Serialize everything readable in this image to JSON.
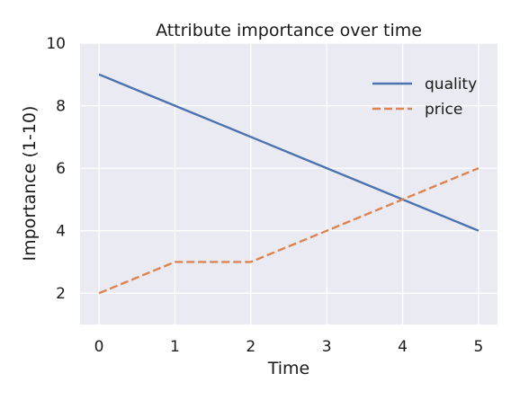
{
  "chart_data": {
    "type": "line",
    "title": "Attribute importance over time",
    "xlabel": "Time",
    "ylabel": "Importance (1-10)",
    "x": [
      0,
      1,
      2,
      3,
      4,
      5
    ],
    "xticks": [
      "0",
      "1",
      "2",
      "3",
      "4",
      "5"
    ],
    "yticks": [
      "2",
      "4",
      "6",
      "8",
      "10"
    ],
    "xlim": [
      -0.25,
      5.25
    ],
    "ylim": [
      1,
      10
    ],
    "grid": true,
    "legend_position": "top-right",
    "series": [
      {
        "name": "quality",
        "values": [
          9,
          8,
          7,
          6,
          5,
          4
        ],
        "color": "#4c72b0",
        "style": "solid"
      },
      {
        "name": "price",
        "values": [
          2,
          3,
          3,
          4,
          5,
          6
        ],
        "color": "#dd8452",
        "style": "dashed"
      }
    ],
    "background_color": "#eaeaf2"
  }
}
